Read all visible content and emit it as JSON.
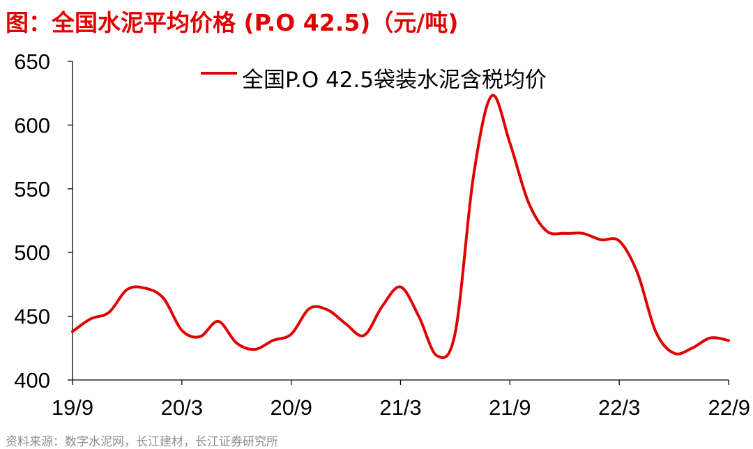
{
  "title": {
    "prefix": "图：",
    "main": "全国水泥平均价格 (P.O 42.5)（元/吨)"
  },
  "source": "资料来源：数字水泥网，长江建材，长江证券研究所",
  "colors": {
    "title": "#e00000",
    "series": "#e00000",
    "axis": "#000000",
    "source": "#8c8c8c"
  },
  "chart_data": {
    "type": "line",
    "title": "全国水泥平均价格 (P.O 42.5)（元/吨)",
    "xlabel": "",
    "ylabel": "",
    "ylim": [
      400,
      650
    ],
    "yticks": [
      400,
      450,
      500,
      550,
      600,
      650
    ],
    "xtick_labels": [
      "19/9",
      "20/3",
      "20/9",
      "21/3",
      "21/9",
      "22/3",
      "22/9"
    ],
    "grid": false,
    "legend_position": "top",
    "series": [
      {
        "name": "全国P.O 42.5袋装水泥含税均价",
        "color": "#e00000",
        "x": [
          "19/9",
          "19/10",
          "19/11",
          "19/12",
          "20/1",
          "20/2",
          "20/3",
          "20/4",
          "20/5",
          "20/6",
          "20/7",
          "20/8",
          "20/9",
          "20/10",
          "20/11",
          "20/12",
          "21/1",
          "21/2",
          "21/3",
          "21/4",
          "21/5",
          "21/6",
          "21/7",
          "21/8",
          "21/9",
          "21/10",
          "21/11",
          "21/12",
          "22/1",
          "22/2",
          "22/3",
          "22/4",
          "22/5",
          "22/6",
          "22/7",
          "22/8",
          "22/9"
        ],
        "values": [
          438,
          448,
          453,
          471,
          472,
          464,
          439,
          434,
          446,
          429,
          424,
          431,
          436,
          456,
          455,
          444,
          435,
          458,
          473,
          450,
          419,
          437,
          560,
          623,
          586,
          540,
          517,
          515,
          515,
          510,
          509,
          484,
          438,
          421,
          425,
          433,
          431
        ]
      }
    ]
  }
}
